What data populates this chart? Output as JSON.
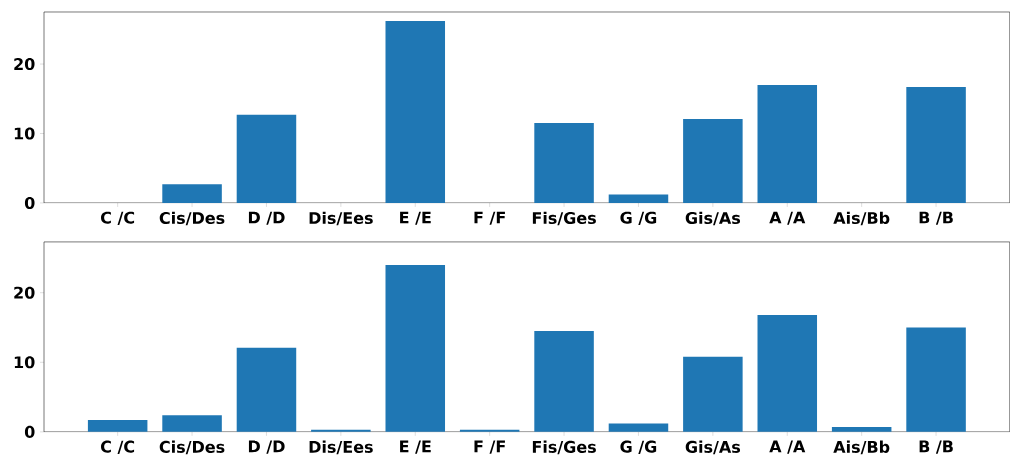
{
  "chart_data": [
    {
      "type": "bar",
      "categories": [
        "C /C",
        "Cis/Des",
        "D /D",
        "Dis/Ees",
        "E /E",
        "F /F",
        "Fis/Ges",
        "G /G",
        "Gis/As",
        "A /A",
        "Ais/Bb",
        "B /B"
      ],
      "values": [
        0,
        2.7,
        12.7,
        0,
        26.2,
        0,
        11.5,
        1.2,
        12.1,
        17.0,
        0,
        16.7
      ],
      "color": "#1f77b4",
      "ylim": [
        0,
        27.5
      ],
      "yticks": [
        0,
        10,
        20
      ]
    },
    {
      "type": "bar",
      "categories": [
        "C /C",
        "Cis/Des",
        "D /D",
        "Dis/Ees",
        "E /E",
        "F /F",
        "Fis/Ges",
        "G /G",
        "Gis/As",
        "A /A",
        "Ais/Bb",
        "B /B"
      ],
      "values": [
        1.7,
        2.4,
        12.1,
        0.3,
        24.0,
        0.3,
        14.5,
        1.2,
        10.8,
        16.8,
        0.7,
        15.0
      ],
      "color": "#1f77b4",
      "ylim": [
        0,
        27.3
      ],
      "yticks": [
        0,
        10,
        20
      ]
    }
  ]
}
